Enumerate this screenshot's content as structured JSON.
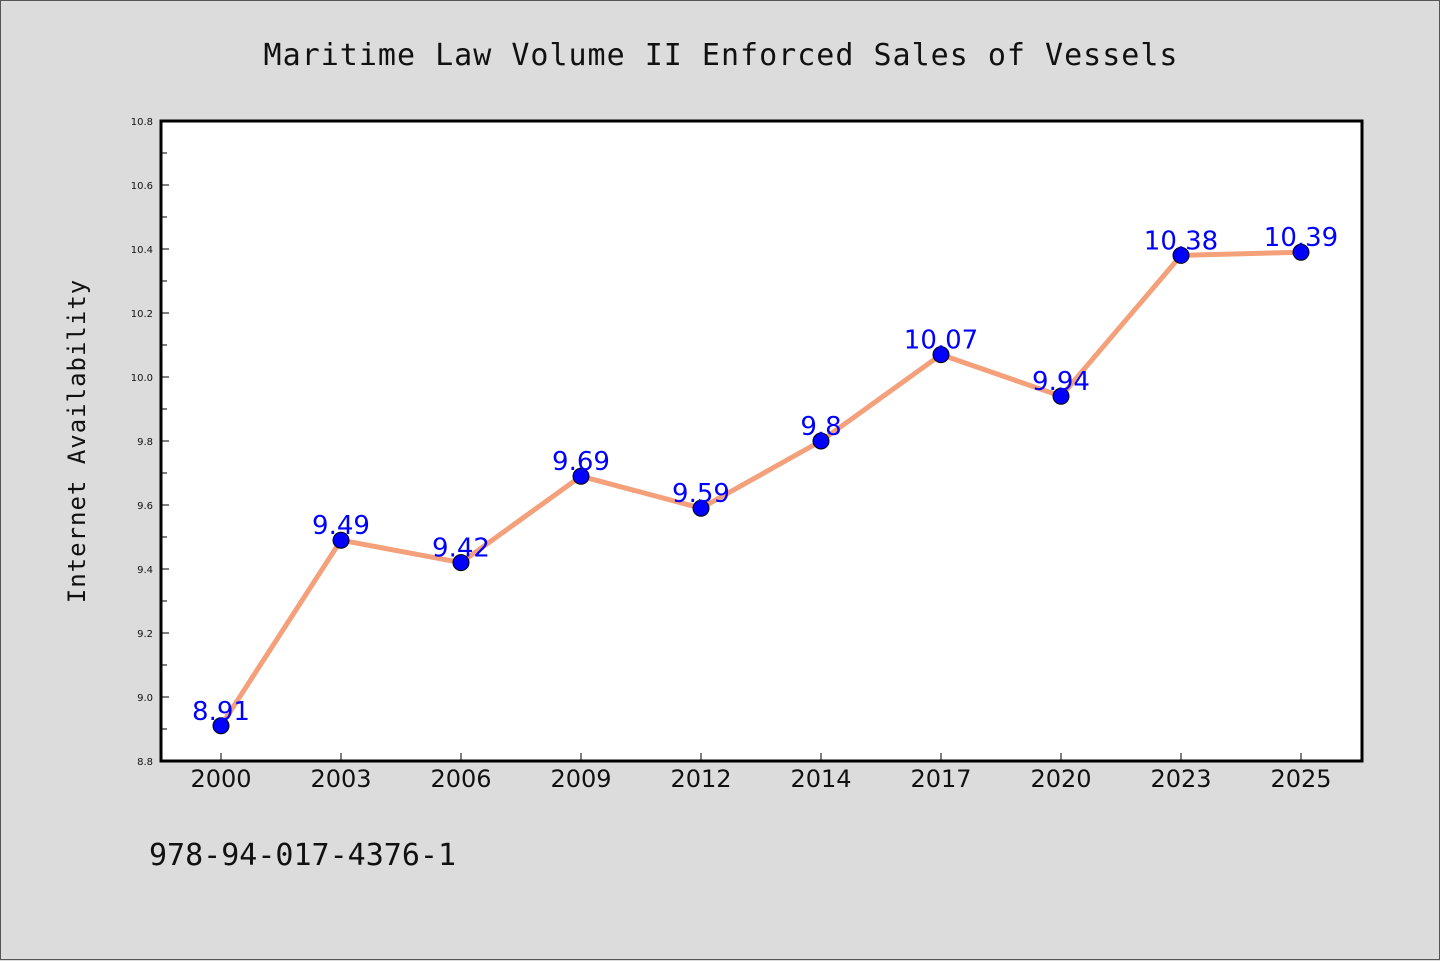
{
  "chart_data": {
    "type": "line",
    "title": "Maritime Law Volume II Enforced Sales of Vessels",
    "xlabel": "",
    "ylabel": "Internet Availability",
    "categories": [
      "2000",
      "2003",
      "2006",
      "2009",
      "2012",
      "2014",
      "2017",
      "2020",
      "2023",
      "2025"
    ],
    "series": [
      {
        "values": [
          8.91,
          9.49,
          9.42,
          9.69,
          9.59,
          9.8,
          10.07,
          9.94,
          10.38,
          10.39
        ],
        "line_color": "#f4a07a",
        "marker_color": "#0000ff"
      }
    ],
    "data_labels": [
      "8.91",
      "9.49",
      "9.42",
      "9.69",
      "9.59",
      "9.8",
      "10.07",
      "9.94",
      "10.38",
      "10.39"
    ],
    "yticks": [
      "8.8",
      "9.0",
      "9.2",
      "9.4",
      "9.6",
      "9.8",
      "10.0",
      "10.2",
      "10.4",
      "10.6",
      "10.8"
    ],
    "ylim": [
      8.8,
      10.8
    ],
    "grid": false,
    "legend": "none"
  },
  "footer": {
    "isbn": "978-94-017-4376-1"
  },
  "colors": {
    "background": "#dcdcdc",
    "plot_area": "#ffffff",
    "line": "#f4a07a",
    "marker": "#0000ff",
    "data_label": "#0000ff"
  }
}
